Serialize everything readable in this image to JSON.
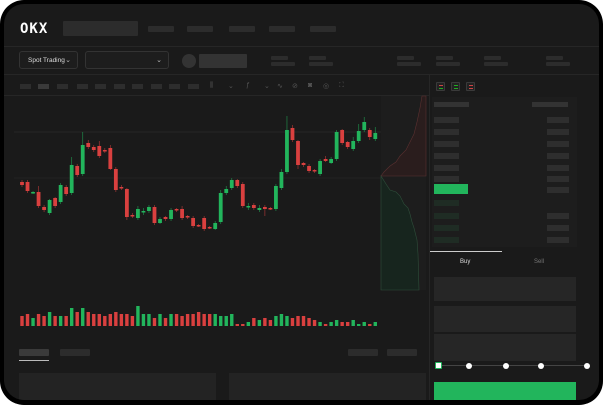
{
  "header": {
    "logo": "OKX"
  },
  "toolbar": {
    "market_selector": "Spot Trading",
    "market_chevron": "⌄",
    "pair_chevron": "⌄"
  },
  "trade_panel": {
    "tabs": [
      "Buy",
      "Sell"
    ],
    "active_tab": "Buy",
    "slider_value_percent": 0,
    "slider_marks": [
      0,
      25,
      50,
      75,
      100
    ]
  },
  "colors": {
    "up": "#22b55c",
    "down": "#d9403f",
    "background": "#1a1a1a"
  },
  "chart_data": {
    "type": "candlestick",
    "title": "",
    "xlabel": "",
    "ylabel": "",
    "grid": true,
    "candles": [
      [
        118,
        115,
        120,
        113
      ],
      [
        118,
        109,
        120,
        107
      ],
      [
        107,
        108,
        109,
        106
      ],
      [
        108,
        94,
        114,
        92
      ],
      [
        93,
        90,
        95,
        88
      ],
      [
        87,
        100,
        101,
        85
      ],
      [
        102,
        94,
        103,
        92
      ],
      [
        98,
        115,
        117,
        96
      ],
      [
        113,
        106,
        115,
        104
      ],
      [
        107,
        135,
        143,
        105
      ],
      [
        134,
        125,
        136,
        123
      ],
      [
        126,
        155,
        168,
        124
      ],
      [
        157,
        153,
        160,
        151
      ],
      [
        153,
        150,
        155,
        148
      ],
      [
        154,
        144,
        159,
        142
      ],
      [
        150,
        149,
        152,
        147
      ],
      [
        152,
        131,
        155,
        130
      ],
      [
        131,
        110,
        133,
        108
      ],
      [
        113,
        112,
        115,
        110
      ],
      [
        111,
        83,
        112,
        80
      ],
      [
        85,
        84,
        87,
        82
      ],
      [
        82,
        91,
        94,
        80
      ],
      [
        88,
        89,
        92,
        85
      ],
      [
        89,
        93,
        95,
        87
      ],
      [
        93,
        77,
        95,
        75
      ],
      [
        77,
        81,
        83,
        76
      ],
      [
        83,
        81,
        84,
        79
      ],
      [
        81,
        90,
        92,
        79
      ],
      [
        91,
        90,
        92,
        88
      ],
      [
        91,
        82,
        94,
        80
      ],
      [
        84,
        83,
        85,
        81
      ],
      [
        82,
        74,
        84,
        72
      ],
      [
        75,
        74,
        76,
        73
      ],
      [
        82,
        71,
        84,
        69
      ],
      [
        73,
        72,
        74,
        71
      ],
      [
        71,
        77,
        79,
        70
      ],
      [
        78,
        107,
        110,
        76
      ],
      [
        107,
        111,
        114,
        105
      ],
      [
        112,
        120,
        122,
        110
      ],
      [
        120,
        114,
        121,
        112
      ],
      [
        116,
        94,
        118,
        92
      ],
      [
        93,
        94,
        97,
        90
      ],
      [
        95,
        92,
        97,
        90
      ],
      [
        90,
        92,
        95,
        88
      ],
      [
        93,
        91,
        95,
        84
      ],
      [
        92,
        91,
        93,
        90
      ],
      [
        91,
        114,
        116,
        89
      ],
      [
        112,
        128,
        131,
        110
      ],
      [
        128,
        170,
        184,
        126
      ],
      [
        172,
        160,
        175,
        158
      ],
      [
        159,
        135,
        160,
        131
      ],
      [
        137,
        135,
        138,
        133
      ],
      [
        134,
        129,
        136,
        127
      ],
      [
        130,
        129,
        131,
        127
      ],
      [
        126,
        139,
        141,
        124
      ],
      [
        141,
        139,
        144,
        138
      ],
      [
        137,
        141,
        143,
        136
      ],
      [
        141,
        168,
        170,
        139
      ],
      [
        170,
        157,
        171,
        155
      ],
      [
        158,
        153,
        159,
        151
      ],
      [
        151,
        159,
        163,
        149
      ],
      [
        159,
        169,
        176,
        157
      ],
      [
        170,
        178,
        183,
        168
      ],
      [
        170,
        163,
        172,
        160
      ],
      [
        161,
        167,
        173,
        159
      ]
    ],
    "volume": [
      5,
      6,
      4,
      6,
      5,
      7,
      5,
      5,
      5,
      9,
      7,
      9,
      7,
      6,
      6,
      5,
      6,
      7,
      6,
      6,
      5,
      10,
      6,
      6,
      4,
      6,
      4,
      6,
      6,
      5,
      6,
      6,
      7,
      6,
      6,
      6,
      5,
      5,
      6,
      1,
      1,
      2,
      4,
      3,
      4,
      3,
      5,
      6,
      5,
      4,
      5,
      5,
      4,
      3,
      2,
      1,
      2,
      3,
      2,
      2,
      3,
      1,
      2,
      1,
      2
    ],
    "depth": {
      "asks": "upper",
      "bids": "lower"
    }
  }
}
